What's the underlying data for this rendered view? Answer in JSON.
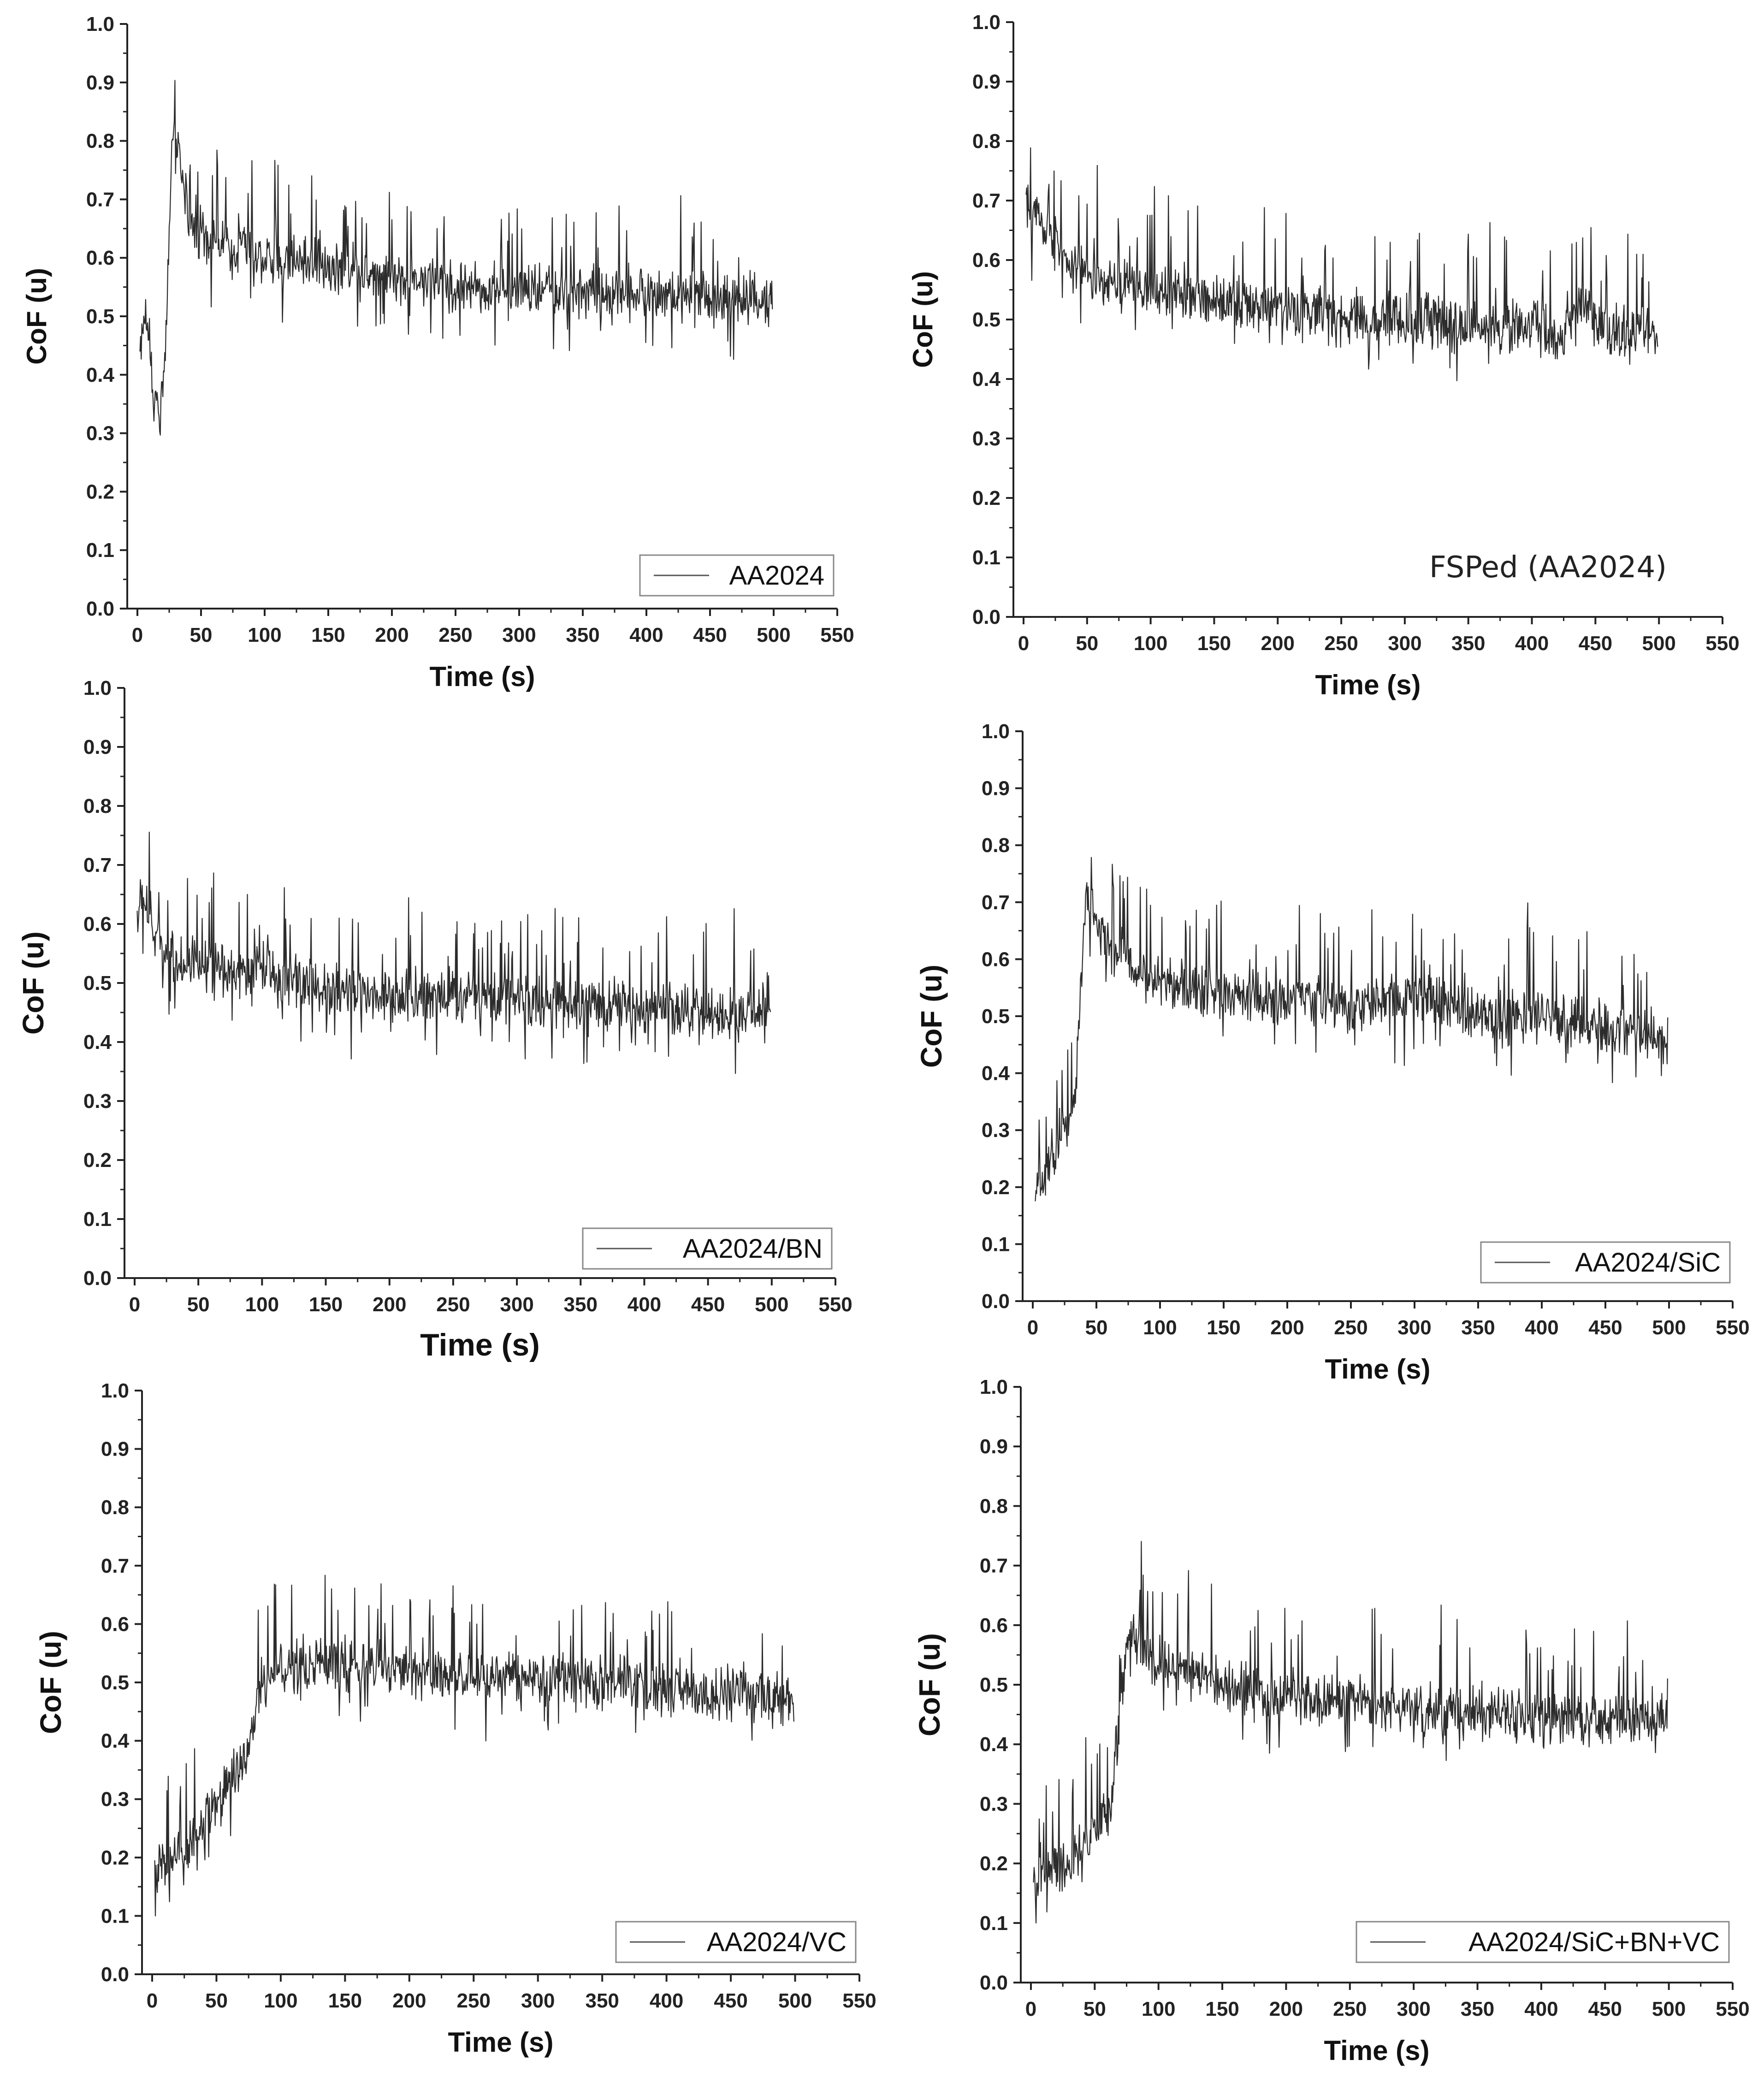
{
  "chart_data": [
    {
      "type": "line",
      "title": "",
      "xlabel": "Time (s)",
      "ylabel": "CoF (u)",
      "xlim": [
        0,
        550
      ],
      "ylim": [
        0,
        1.0
      ],
      "xticks": [
        "0",
        "50",
        "100",
        "150",
        "200",
        "250",
        "300",
        "350",
        "400",
        "450",
        "500",
        "550"
      ],
      "yticks": [
        "0.0",
        "0.1",
        "0.2",
        "0.3",
        "0.4",
        "0.5",
        "0.6",
        "0.7",
        "0.8",
        "0.9",
        "1.0"
      ],
      "legend": "AA2024",
      "legend_style": "boxed",
      "legend_position": "bottom-right",
      "trend": [
        [
          0,
          0.45
        ],
        [
          5,
          0.5
        ],
        [
          10,
          0.38
        ],
        [
          15,
          0.33
        ],
        [
          20,
          0.42
        ],
        [
          25,
          0.8
        ],
        [
          30,
          0.78
        ],
        [
          40,
          0.65
        ],
        [
          60,
          0.63
        ],
        [
          100,
          0.6
        ],
        [
          150,
          0.59
        ],
        [
          200,
          0.57
        ],
        [
          250,
          0.55
        ],
        [
          300,
          0.55
        ],
        [
          350,
          0.54
        ],
        [
          400,
          0.54
        ],
        [
          450,
          0.53
        ],
        [
          500,
          0.53
        ]
      ]
    },
    {
      "type": "line",
      "title": "",
      "xlabel": "Time (s)",
      "ylabel": "CoF (u)",
      "xlim": [
        0,
        550
      ],
      "ylim": [
        0,
        1.0
      ],
      "xticks": [
        "0",
        "50",
        "100",
        "150",
        "200",
        "250",
        "300",
        "350",
        "400",
        "450",
        "500",
        "550"
      ],
      "yticks": [
        "0.0",
        "0.1",
        "0.2",
        "0.3",
        "0.4",
        "0.5",
        "0.6",
        "0.7",
        "0.8",
        "0.9",
        "1.0"
      ],
      "legend": "FSPed (AA2024)",
      "legend_style": "plain",
      "legend_position": "bottom-right",
      "trend": [
        [
          0,
          0.68
        ],
        [
          10,
          0.68
        ],
        [
          30,
          0.6
        ],
        [
          60,
          0.56
        ],
        [
          100,
          0.55
        ],
        [
          150,
          0.53
        ],
        [
          200,
          0.52
        ],
        [
          250,
          0.5
        ],
        [
          300,
          0.5
        ],
        [
          350,
          0.49
        ],
        [
          400,
          0.49
        ],
        [
          420,
          0.47
        ],
        [
          440,
          0.52
        ],
        [
          460,
          0.48
        ],
        [
          500,
          0.48
        ]
      ]
    },
    {
      "type": "line",
      "title": "",
      "xlabel": "Time (s)",
      "ylabel": "CoF (u)",
      "xlim": [
        0,
        550
      ],
      "ylim": [
        0,
        1.0
      ],
      "xticks": [
        "0",
        "50",
        "100",
        "150",
        "200",
        "250",
        "300",
        "350",
        "400",
        "450",
        "500",
        "550"
      ],
      "yticks": [
        "0.0",
        "0.1",
        "0.2",
        "0.3",
        "0.4",
        "0.5",
        "0.6",
        "0.7",
        "0.8",
        "0.9",
        "1.0"
      ],
      "legend": "AA2024/BN",
      "legend_style": "boxed",
      "legend_position": "bottom-right",
      "trend": [
        [
          0,
          0.62
        ],
        [
          5,
          0.65
        ],
        [
          15,
          0.57
        ],
        [
          30,
          0.54
        ],
        [
          60,
          0.52
        ],
        [
          100,
          0.52
        ],
        [
          150,
          0.49
        ],
        [
          200,
          0.48
        ],
        [
          250,
          0.48
        ],
        [
          300,
          0.47
        ],
        [
          350,
          0.46
        ],
        [
          400,
          0.46
        ],
        [
          450,
          0.45
        ],
        [
          500,
          0.45
        ]
      ]
    },
    {
      "type": "line",
      "title": "",
      "xlabel": "Time (s)",
      "ylabel": "CoF (u)",
      "xlim": [
        0,
        550
      ],
      "ylim": [
        0,
        1.0
      ],
      "xticks": [
        "0",
        "50",
        "100",
        "150",
        "200",
        "250",
        "300",
        "350",
        "400",
        "450",
        "500",
        "550"
      ],
      "yticks": [
        "0.0",
        "0.1",
        "0.2",
        "0.3",
        "0.4",
        "0.5",
        "0.6",
        "0.7",
        "0.8",
        "0.9",
        "1.0"
      ],
      "legend": "AA2024/SiC",
      "legend_style": "boxed",
      "legend_position": "bottom-right",
      "trend": [
        [
          0,
          0.2
        ],
        [
          10,
          0.22
        ],
        [
          20,
          0.3
        ],
        [
          30,
          0.32
        ],
        [
          40,
          0.72
        ],
        [
          50,
          0.65
        ],
        [
          80,
          0.58
        ],
        [
          100,
          0.56
        ],
        [
          150,
          0.54
        ],
        [
          200,
          0.53
        ],
        [
          250,
          0.52
        ],
        [
          300,
          0.53
        ],
        [
          350,
          0.5
        ],
        [
          400,
          0.5
        ],
        [
          450,
          0.48
        ],
        [
          500,
          0.46
        ]
      ]
    },
    {
      "type": "line",
      "title": "",
      "xlabel": "Time (s)",
      "ylabel": "CoF (u)",
      "xlim": [
        0,
        550
      ],
      "ylim": [
        0,
        1.0
      ],
      "xticks": [
        "0",
        "50",
        "100",
        "150",
        "200",
        "250",
        "300",
        "350",
        "400",
        "450",
        "500",
        "550"
      ],
      "yticks": [
        "0.0",
        "0.1",
        "0.2",
        "0.3",
        "0.4",
        "0.5",
        "0.6",
        "0.7",
        "0.8",
        "0.9",
        "1.0"
      ],
      "legend": "AA2024/VC",
      "legend_style": "boxed",
      "legend_position": "bottom-right",
      "trend": [
        [
          0,
          0.18
        ],
        [
          20,
          0.2
        ],
        [
          35,
          0.25
        ],
        [
          50,
          0.3
        ],
        [
          70,
          0.38
        ],
        [
          85,
          0.5
        ],
        [
          100,
          0.53
        ],
        [
          150,
          0.53
        ],
        [
          200,
          0.52
        ],
        [
          250,
          0.51
        ],
        [
          300,
          0.51
        ],
        [
          350,
          0.5
        ],
        [
          400,
          0.49
        ],
        [
          450,
          0.48
        ],
        [
          500,
          0.47
        ]
      ]
    },
    {
      "type": "line",
      "title": "",
      "xlabel": "Time (s)",
      "ylabel": "CoF (u)",
      "xlim": [
        0,
        550
      ],
      "ylim": [
        0,
        1.0
      ],
      "xticks": [
        "0",
        "50",
        "100",
        "150",
        "200",
        "250",
        "300",
        "350",
        "400",
        "450",
        "500",
        "550"
      ],
      "yticks": [
        "0.0",
        "0.1",
        "0.2",
        "0.3",
        "0.4",
        "0.5",
        "0.6",
        "0.7",
        "0.8",
        "0.9",
        "1.0"
      ],
      "legend": "AA2024/SiC+BN+VC",
      "legend_style": "boxed",
      "legend_position": "bottom-right",
      "trend": [
        [
          0,
          0.18
        ],
        [
          30,
          0.2
        ],
        [
          60,
          0.3
        ],
        [
          75,
          0.6
        ],
        [
          90,
          0.55
        ],
        [
          150,
          0.5
        ],
        [
          200,
          0.48
        ],
        [
          250,
          0.47
        ],
        [
          300,
          0.46
        ],
        [
          350,
          0.45
        ],
        [
          400,
          0.45
        ],
        [
          450,
          0.44
        ],
        [
          500,
          0.44
        ]
      ]
    }
  ]
}
